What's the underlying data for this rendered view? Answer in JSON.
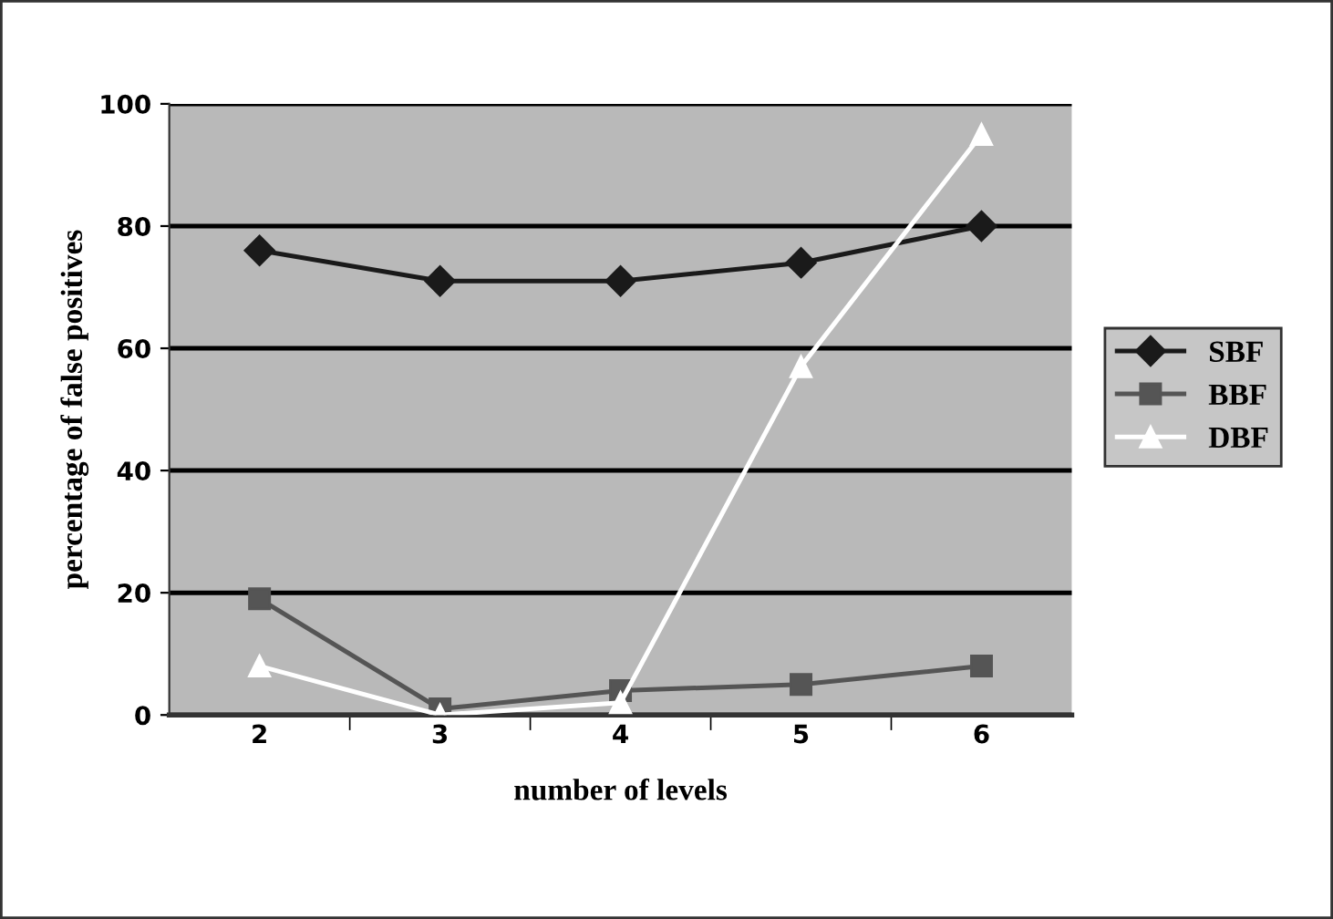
{
  "chart_data": {
    "type": "line",
    "xlabel": "number of levels",
    "ylabel": "percentage of false positives",
    "categories": [
      "2",
      "3",
      "4",
      "5",
      "6"
    ],
    "series": [
      {
        "name": "SBF",
        "color": "#1a1a1a",
        "marker": "diamond",
        "values": [
          76,
          71,
          71,
          74,
          80
        ]
      },
      {
        "name": "BBF",
        "color": "#555555",
        "marker": "square",
        "values": [
          19,
          1,
          4,
          5,
          8
        ]
      },
      {
        "name": "DBF",
        "color": "#ffffff",
        "marker": "triangle",
        "values": [
          8,
          0,
          2,
          57,
          95
        ]
      }
    ],
    "ylim": [
      0,
      100
    ],
    "yticks": [
      0,
      20,
      40,
      60,
      80,
      100
    ],
    "grid": "y",
    "legend": "right"
  }
}
